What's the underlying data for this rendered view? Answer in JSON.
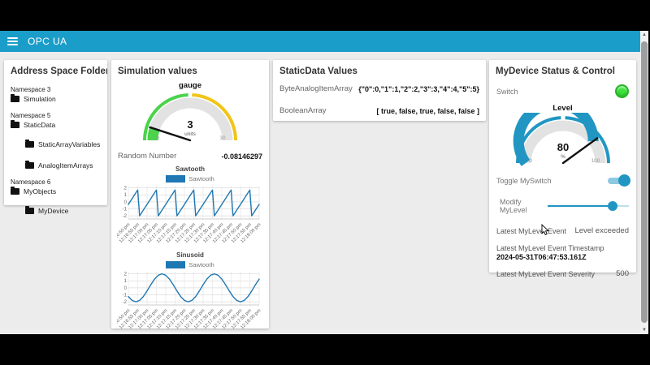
{
  "header": {
    "title": "OPC UA"
  },
  "colors": {
    "header_teal": "#1b9dc9",
    "accent_blue": "#2196c3",
    "chart_line": "#1f77b4",
    "gauge_green": "#4bd34b",
    "gauge_yellow": "#f0c419",
    "led_green": "#3ce43c"
  },
  "scrollbar": {
    "up_glyph": "▲",
    "down_glyph": "▼"
  },
  "address_card": {
    "title": "Address Space Folder Str...",
    "groups": [
      {
        "namespace": "Namespace 3",
        "items": [
          {
            "label": "Simulation"
          }
        ]
      },
      {
        "namespace": "Namespace 5",
        "items": [
          {
            "label": "StaticData"
          },
          {
            "label": "StaticArrayVariables"
          },
          {
            "label": "AnalogItemArrays"
          }
        ]
      },
      {
        "namespace": "Namespace 6",
        "items": [
          {
            "label": "MyObjects"
          },
          {
            "label": "MyDevice"
          }
        ]
      }
    ]
  },
  "simulation_card": {
    "title": "Simulation values",
    "random_number": {
      "label": "Random Number",
      "value": "-0.08146297"
    }
  },
  "static_card": {
    "title": "StaticData Values",
    "rows": [
      {
        "label": "ByteAnalogItemArray",
        "value": "{\"0\":0,\"1\":1,\"2\":2,\"3\":3,\"4\":4,\"5\":5}"
      },
      {
        "label": "BooleanArray",
        "value": "[ true, false, true, false, false ]"
      }
    ]
  },
  "mydevice_card": {
    "title": "MyDevice Status & Control",
    "switch_label": "Switch",
    "switch_state": "on",
    "toggle_label": "Toggle MySwitch",
    "toggle_state": "on",
    "slider_label": "Modify MyLevel",
    "slider_value_pct": 80,
    "event_row": {
      "label": "Latest MyLevel Event",
      "value": "Level exceeded"
    },
    "timestamp_row": {
      "label": "Latest MyLevel Event Timestamp",
      "value": "2024-05-31T06:47:53.161Z"
    },
    "severity_row": {
      "label": "Latest MyLevel Event Severity",
      "value": "500"
    }
  },
  "chart_data": [
    {
      "type": "gauge",
      "title": "gauge",
      "value": 3,
      "value_label": "3",
      "units": "units",
      "min": 0,
      "max": 30,
      "min_label": "0",
      "max_label": "30",
      "fill_color": "#4bd34b",
      "track_color": "#e2e2e2",
      "sectors": [
        {
          "from": 0,
          "to": 14.6,
          "color": "#4bd34b"
        },
        {
          "from": 15.4,
          "to": 30,
          "color": "#f0c419"
        }
      ]
    },
    {
      "type": "line",
      "title": "Sawtooth",
      "series": [
        {
          "name": "Sawtooth",
          "color": "#1f77b4",
          "values": [
            -0.36,
            0.05,
            0.46,
            0.87,
            1.28,
            1.69,
            -2.0,
            -1.59,
            -1.18,
            -0.77,
            -0.36,
            0.05,
            0.46,
            0.87,
            1.28,
            1.69,
            -2.0,
            -1.59,
            -1.18,
            -0.77,
            -0.36,
            0.05,
            0.46,
            0.87,
            1.28,
            1.69,
            -2.0,
            -1.59,
            -1.18,
            -0.77,
            -0.36,
            0.05,
            0.46,
            0.87,
            1.28,
            1.69,
            -2.0,
            -1.59,
            -1.18,
            -0.77,
            -0.36,
            0.05,
            0.46,
            0.87,
            1.28,
            1.69,
            -2.0,
            -1.59,
            -1.18,
            -0.77,
            -0.36,
            0.05,
            0.46,
            0.87,
            1.28,
            1.69,
            -2.0,
            -1.59,
            -1.18,
            -0.77,
            -0.36,
            0.05,
            0.46,
            0.87,
            1.28,
            1.69,
            -2.0,
            -1.59,
            -1.18,
            -0.77,
            -0.36
          ]
        }
      ],
      "x_step_s": 1,
      "x_range_s": [
        0,
        70
      ],
      "x_labels": [
        "12:16:50 pm",
        "12:16:55 pm",
        "12:17:00 pm",
        "12:17:05 pm",
        "12:17:10 pm",
        "12:17:15 pm",
        "12:17:20 pm",
        "12:17:25 pm",
        "12:17:30 pm",
        "12:17:35 pm",
        "12:17:40 pm",
        "12:17:45 pm",
        "12:17:50 pm",
        "12:17:55 pm",
        "12:18:00 pm"
      ],
      "y_ticks": [
        2,
        1,
        0,
        -1,
        -2
      ],
      "ylim": [
        -2.45,
        2.3
      ],
      "grid": true,
      "legend_position": "top"
    },
    {
      "type": "line",
      "title": "Sinusoid",
      "series": [
        {
          "name": "Sawtooth",
          "color": "#1f77b4",
          "values": [
            -1.25,
            -1.8,
            -2.0,
            -1.8,
            -1.25,
            -0.45,
            0.45,
            1.25,
            1.8,
            2.0,
            1.8,
            1.25,
            0.45,
            -0.45,
            -1.25,
            -1.8,
            -2.0,
            -1.8,
            -1.25,
            -0.45,
            0.45,
            1.25,
            1.8,
            2.0,
            1.8,
            1.25,
            0.45,
            -0.45,
            -1.25,
            -1.8,
            -2.0,
            -1.8,
            -1.25,
            -0.45,
            0.45,
            1.25
          ]
        }
      ],
      "x_step_s": 2,
      "x_range_s": [
        0,
        70
      ],
      "x_labels": [
        "12:16:50 pm",
        "12:16:55 pm",
        "12:17:00 pm",
        "12:17:05 pm",
        "12:17:10 pm",
        "12:17:15 pm",
        "12:17:20 pm",
        "12:17:25 pm",
        "12:17:30 pm",
        "12:17:35 pm",
        "12:17:40 pm",
        "12:17:45 pm",
        "12:17:50 pm",
        "12:17:55 pm",
        "12:18:00 pm"
      ],
      "y_ticks": [
        2,
        1,
        0,
        -1,
        -2
      ],
      "ylim": [
        -2.45,
        2.3
      ],
      "grid": true,
      "legend_position": "top"
    },
    {
      "type": "gauge",
      "title": "Level",
      "value": 80,
      "value_label": "80",
      "units": "%",
      "min": 0,
      "max": 100,
      "min_label": "0",
      "max_label": "100",
      "fill_color": "#2196c3",
      "track_color": "#e2e2e2",
      "sectors": [
        {
          "from": 0,
          "to": 48.5,
          "color": "#2196c3"
        },
        {
          "from": 51.5,
          "to": 100,
          "color": "#2196c3"
        }
      ]
    }
  ]
}
